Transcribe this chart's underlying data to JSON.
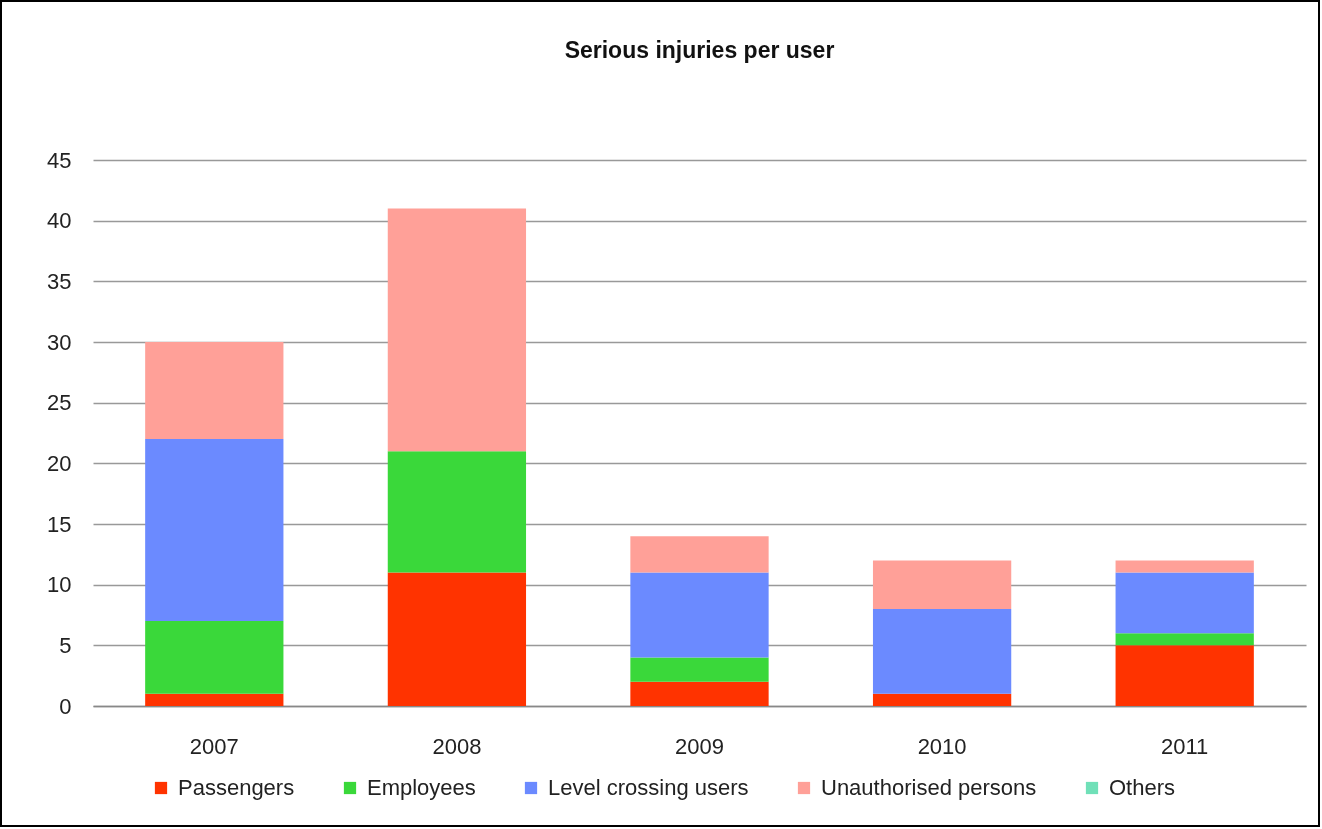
{
  "chart_data": {
    "type": "bar",
    "title": "Serious injuries per user",
    "categories": [
      "2007",
      "2008",
      "2009",
      "2010",
      "2011"
    ],
    "series": [
      {
        "name": "Passengers",
        "color": "#ff3300",
        "values": [
          1,
          11,
          2,
          1,
          5
        ]
      },
      {
        "name": "Employees",
        "color": "#3ad83a",
        "values": [
          6,
          10,
          2,
          0,
          1
        ]
      },
      {
        "name": "Level crossing users",
        "color": "#6b8aff",
        "values": [
          15,
          0,
          7,
          7,
          5
        ]
      },
      {
        "name": "Unauthorised persons",
        "color": "#ffa098",
        "values": [
          8,
          20,
          3,
          4,
          1
        ]
      },
      {
        "name": "Others",
        "color": "#70e0b8",
        "values": [
          0,
          0,
          0,
          0,
          0
        ]
      }
    ],
    "stacked": true,
    "ylim": [
      0,
      45
    ],
    "yticks": [
      0,
      5,
      10,
      15,
      20,
      25,
      30,
      35,
      40,
      45
    ],
    "grid": "y",
    "legend": "bottom"
  }
}
